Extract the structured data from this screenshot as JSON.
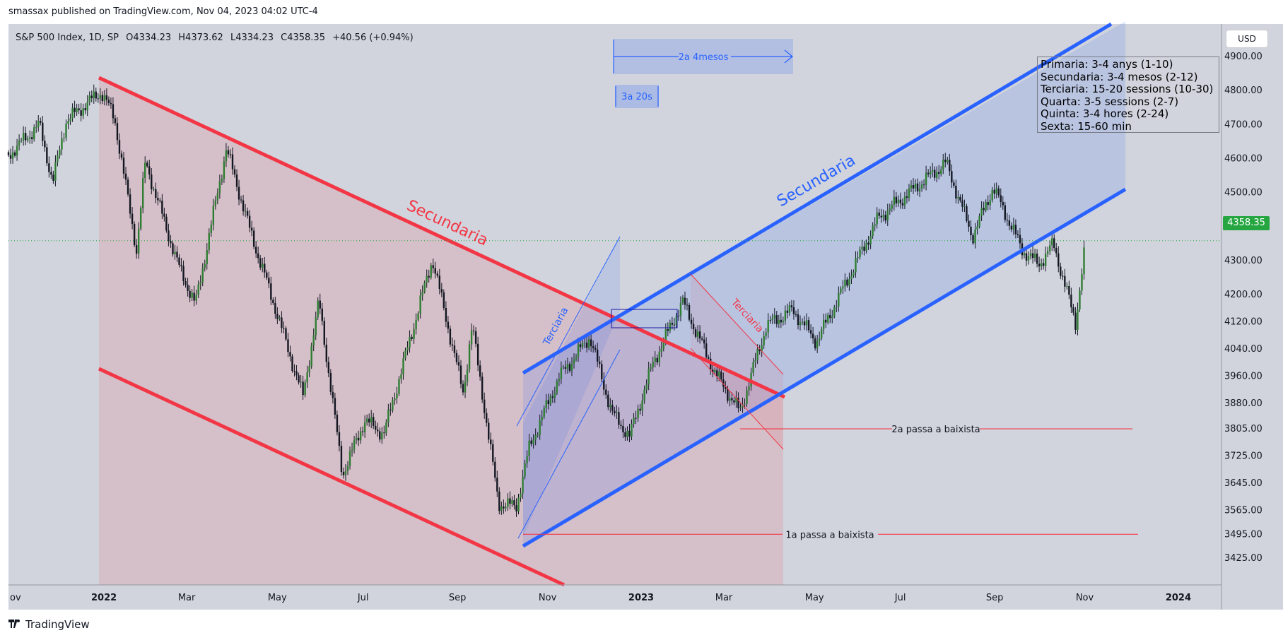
{
  "published": "smassax published on TradingView.com, Nov 04, 2023 04:02 UTC-4",
  "header": {
    "symbol": "S&P 500 Index, 1D, SP",
    "open": "O4334.23",
    "high": "H4373.62",
    "low": "L4334.23",
    "close": "C4358.35",
    "change": "+40.56 (+0.94%)"
  },
  "currency_button": "USD",
  "last_price": "4358.35",
  "footer": {
    "brand": "TradingView"
  },
  "legend_lines": [
    "Primaria: 3-4 anys (1-10)",
    "Secundaria: 3-4 mesos (2-12)",
    "Terciaria: 15-20 sessions (10-30)",
    "Quarta: 3-5 sessions (2-7)",
    "Quinta: 3-4 hores (2-24)",
    "Sexta: 15-60 min"
  ],
  "colors": {
    "background": "#d1d4dc",
    "bull": "#2e7d32",
    "bear": "#131722",
    "red": "#f23645",
    "blue": "#2962ff",
    "last_price": "#26a641"
  },
  "chart_data": {
    "type": "candlestick",
    "x_ticks": [
      "ov",
      "2022",
      "Mar",
      "May",
      "Jul",
      "Sep",
      "Nov",
      "2023",
      "Mar",
      "May",
      "Jul",
      "Sep",
      "Nov",
      "2024"
    ],
    "y_ticks": [
      "4900.00",
      "4800.00",
      "4700.00",
      "4600.00",
      "4500.00",
      "4400.00",
      "4300.00",
      "4200.00",
      "4120.00",
      "4040.00",
      "3960.00",
      "3880.00",
      "3805.00",
      "3725.00",
      "3645.00",
      "3565.00",
      "3495.00",
      "3425.00"
    ],
    "series": [
      {
        "name": "S&P 500 Index",
        "close_path": [
          [
            "2021-11-01",
            4610
          ],
          [
            "2021-11-22",
            4700
          ],
          [
            "2021-12-01",
            4530
          ],
          [
            "2021-12-10",
            4710
          ],
          [
            "2022-01-03",
            4796
          ],
          [
            "2022-01-12",
            4720
          ],
          [
            "2022-01-27",
            4330
          ],
          [
            "2022-02-02",
            4590
          ],
          [
            "2022-02-24",
            4290
          ],
          [
            "2022-03-08",
            4170
          ],
          [
            "2022-03-29",
            4630
          ],
          [
            "2022-04-14",
            4390
          ],
          [
            "2022-05-02",
            4150
          ],
          [
            "2022-05-20",
            3900
          ],
          [
            "2022-05-31",
            4180
          ],
          [
            "2022-06-16",
            3670
          ],
          [
            "2022-07-01",
            3830
          ],
          [
            "2022-07-14",
            3790
          ],
          [
            "2022-08-16",
            4305
          ],
          [
            "2022-09-06",
            3910
          ],
          [
            "2022-09-12",
            4110
          ],
          [
            "2022-09-30",
            3585
          ],
          [
            "2022-10-12",
            3577
          ],
          [
            "2022-10-21",
            3752
          ],
          [
            "2022-11-10",
            3956
          ],
          [
            "2022-12-01",
            4076
          ],
          [
            "2022-12-16",
            3852
          ],
          [
            "2022-12-28",
            3783
          ],
          [
            "2023-01-13",
            3999
          ],
          [
            "2023-02-02",
            4179
          ],
          [
            "2023-02-24",
            3970
          ],
          [
            "2023-03-13",
            3855
          ],
          [
            "2023-03-31",
            4109
          ],
          [
            "2023-04-18",
            4154
          ],
          [
            "2023-05-04",
            4061
          ],
          [
            "2023-05-19",
            4191
          ],
          [
            "2023-06-15",
            4425
          ],
          [
            "2023-07-31",
            4588
          ],
          [
            "2023-08-18",
            4370
          ],
          [
            "2023-09-01",
            4515
          ],
          [
            "2023-09-21",
            4330
          ],
          [
            "2023-10-02",
            4288
          ],
          [
            "2023-10-12",
            4349
          ],
          [
            "2023-10-27",
            4117
          ],
          [
            "2023-11-03",
            4358
          ]
        ]
      }
    ],
    "annotations": {
      "channel_labels": [
        "Secundaria",
        "Secundaria",
        "Terciaria",
        "Terciaria"
      ],
      "range_labels": [
        "2a 4mesos",
        "3a 20s"
      ],
      "level_labels": [
        "2a passa a baixista",
        "1a passa a baixista"
      ],
      "levels": [
        3805,
        3495
      ]
    },
    "title": "S&P 500 Index, 1D, SP"
  }
}
